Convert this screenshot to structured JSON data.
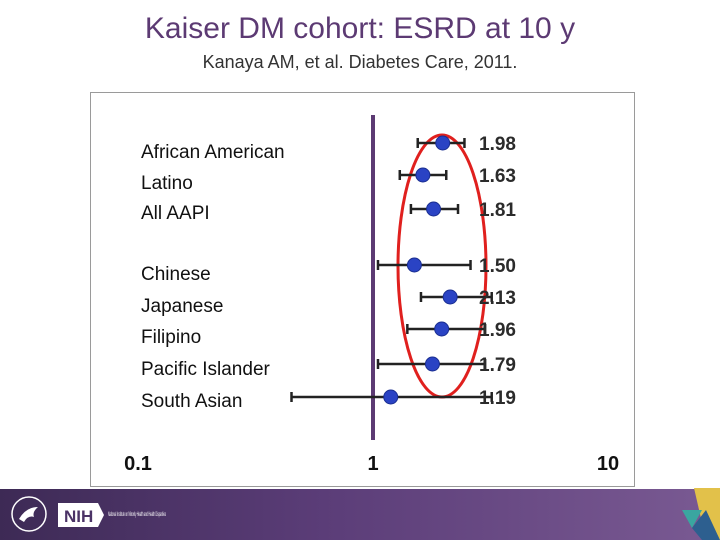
{
  "header": {
    "title": "Kaiser DM cohort: ESRD at 10 y",
    "subtitle": "Kanaya AM, et al. Diabetes Care, 2011."
  },
  "footer": {
    "nih_text": "NIH",
    "institute_text": "National Institute on Minority Health and Health Disparities"
  },
  "colors": {
    "title": "#5c3a73",
    "point": "#2a43c4",
    "reference_line": "#5c3a73",
    "highlight_ellipse": "#e0201e",
    "footer": "#4b3366"
  },
  "chart_data": {
    "type": "scatter",
    "subtype": "forest-plot",
    "x_scale": "log",
    "xlim": [
      0.1,
      10
    ],
    "x_ticks": [
      "0.1",
      "1",
      "10"
    ],
    "reference_x": 1,
    "highlight": "red ellipse around ratios",
    "rows": [
      {
        "label": "",
        "value_label": "1.98",
        "x": 1.98,
        "ci": [
          1.55,
          2.45
        ]
      },
      {
        "label": "African American",
        "value_label": "1.63",
        "x": 1.63,
        "ci": [
          1.3,
          2.05
        ]
      },
      {
        "label": "Latino",
        "value_label": "1.81",
        "x": 1.81,
        "ci": [
          1.45,
          2.3
        ]
      },
      {
        "label": "All AAPI",
        "value_label": "1.50",
        "x": 1.5,
        "ci": [
          1.05,
          2.6
        ]
      },
      {
        "label": "Chinese",
        "value_label": "2.13",
        "x": 2.13,
        "ci": [
          1.6,
          3.2
        ]
      },
      {
        "label": "Japanese",
        "value_label": "1.96",
        "x": 1.96,
        "ci": [
          1.4,
          3.0
        ]
      },
      {
        "label": "Filipino",
        "value_label": "1.79",
        "x": 1.79,
        "ci": [
          1.05,
          3.0
        ]
      },
      {
        "label": "Pacific Islander",
        "value_label": "1.19",
        "x": 1.19,
        "ci": [
          0.45,
          3.2
        ]
      }
    ],
    "side_labels": [
      "African American",
      "Latino",
      "All AAPI",
      "Chinese",
      "Japanese",
      "Filipino",
      "Pacific Islander",
      "South Asian"
    ]
  }
}
